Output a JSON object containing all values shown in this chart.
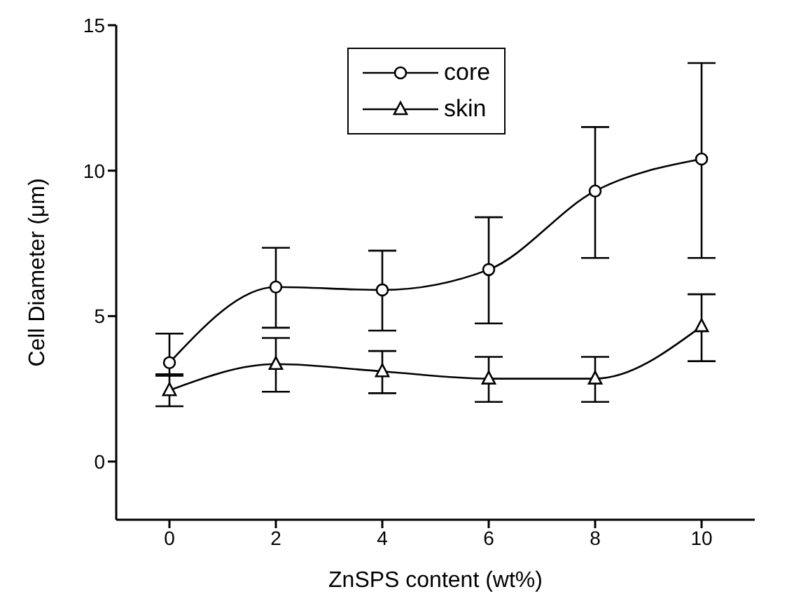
{
  "chart_data": {
    "type": "line",
    "xlabel": "ZnSPS content (wt%)",
    "ylabel": "Cell Diameter (μm)",
    "x": [
      0,
      2,
      4,
      6,
      8,
      10
    ],
    "series": [
      {
        "name": "core",
        "color": "#000000",
        "marker": "circle",
        "values": [
          3.4,
          6.0,
          5.9,
          6.6,
          9.3,
          10.4
        ],
        "errors": [
          [
            3.0,
            4.4
          ],
          [
            4.6,
            7.35
          ],
          [
            4.5,
            7.25
          ],
          [
            4.75,
            8.4
          ],
          [
            7.0,
            11.5
          ],
          [
            7.0,
            13.7
          ]
        ]
      },
      {
        "name": "skin",
        "color": "#000000",
        "marker": "triangle",
        "values": [
          2.45,
          3.35,
          3.1,
          2.85,
          2.85,
          4.65
        ],
        "errors": [
          [
            1.9,
            2.95
          ],
          [
            2.4,
            4.25
          ],
          [
            2.35,
            3.8
          ],
          [
            2.05,
            3.6
          ],
          [
            2.05,
            3.6
          ],
          [
            3.45,
            5.75
          ]
        ]
      }
    ],
    "xlim": [
      -1,
      11
    ],
    "xticks": [
      0,
      2,
      4,
      6,
      8,
      10
    ],
    "ylim": [
      -2,
      15
    ],
    "yticks": [
      0,
      5,
      10,
      15
    ],
    "grid": false,
    "legend": "top",
    "line_style": "solid"
  }
}
